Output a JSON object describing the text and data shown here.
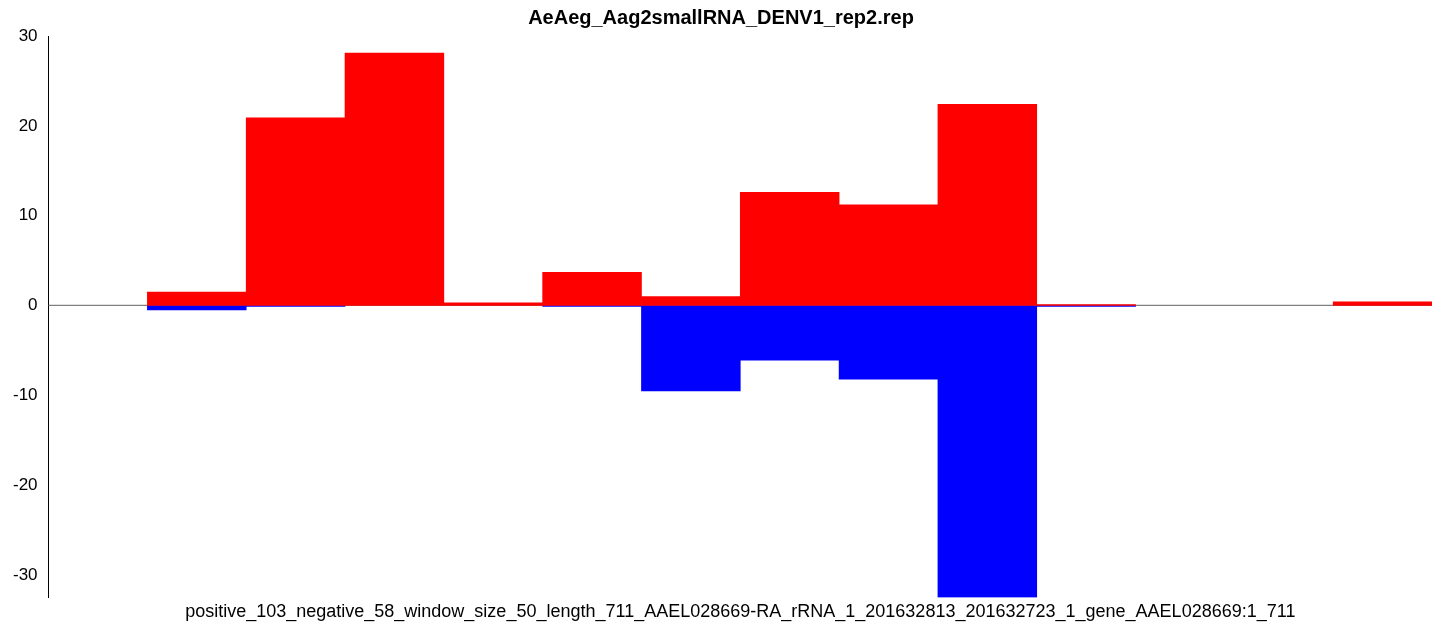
{
  "chart_data": {
    "type": "bar",
    "title": "AeAeg_Aag2smallRNA_DENV1_rep2.rep",
    "xlabel": "positive_103_negative_58_window_size_50_length_711_AAEL028669-RA_rRNA_1_201632813_201632723_1_gene_AAEL028669:1_711",
    "categories": [
      null,
      null,
      null,
      null,
      null,
      null,
      null,
      null,
      null,
      null,
      null,
      null,
      null,
      null
    ],
    "stacked": true,
    "series": [
      {
        "color": "#ff0000",
        "values": [
          null,
          1.5,
          20.9,
          28.1,
          0.3,
          3.7,
          1.0,
          12.6,
          11.2,
          22.4,
          0.1,
          null,
          null,
          0.4
        ]
      },
      {
        "color": "#0000ff",
        "values": [
          null,
          -0.5,
          -0.1,
          null,
          null,
          -0.1,
          -9.5,
          -6.1,
          -8.2,
          -32.5,
          -0.1,
          null,
          null,
          null
        ]
      }
    ],
    "ylim": [
      -32.5,
      30
    ],
    "yticks": [
      -30,
      -20,
      -10,
      0,
      10,
      20,
      30
    ],
    "ref_lines": [
      {
        "axis": "y",
        "value": 0,
        "color": "#808080"
      }
    ],
    "grid": false,
    "legend": false,
    "tick_labels": "y"
  }
}
